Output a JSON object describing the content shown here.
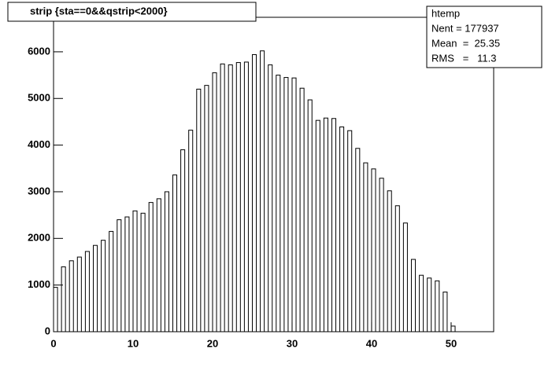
{
  "chart_data": {
    "type": "histogram",
    "title": "strip {sta==0&&qstrip<2000}",
    "stats_title": "htemp",
    "stats": [
      "Nent = 177937",
      "Mean  =  25.35",
      "RMS   =   11.3"
    ],
    "bins": [
      0,
      0.5,
      1,
      1.5,
      2,
      2.5,
      3,
      3.5,
      4,
      4.5,
      5,
      5.5,
      6,
      6.5,
      7,
      7.5,
      8,
      8.5,
      9,
      9.5,
      10,
      10.5,
      11,
      11.5,
      12,
      12.5,
      13,
      13.5,
      14,
      14.5,
      15,
      15.5,
      16,
      16.5,
      17,
      17.5,
      18,
      18.5,
      19,
      19.5,
      20,
      20.5,
      21,
      21.5,
      22,
      22.5,
      23,
      23.5,
      24,
      24.5,
      25,
      25.5,
      26,
      26.5,
      27,
      27.5,
      28,
      28.5,
      29,
      29.5,
      30,
      30.5,
      31,
      31.5,
      32,
      32.5,
      33,
      33.5,
      34,
      34.5,
      35,
      35.5,
      36,
      36.5,
      37,
      37.5,
      38,
      38.5,
      39,
      39.5,
      40,
      40.5,
      41,
      41.5,
      42,
      42.5,
      43,
      43.5,
      44,
      44.5,
      45,
      45.5,
      46,
      46.5,
      47,
      47.5,
      48,
      48.5,
      49,
      49.5,
      50,
      50.5,
      51
    ],
    "counts": [
      950,
      0,
      1390,
      0,
      1520,
      0,
      1600,
      0,
      1720,
      0,
      1850,
      0,
      1960,
      0,
      2150,
      0,
      2400,
      0,
      2460,
      0,
      2590,
      0,
      2540,
      0,
      2770,
      0,
      2850,
      0,
      3000,
      0,
      3360,
      0,
      3900,
      0,
      4320,
      0,
      5200,
      0,
      5280,
      0,
      5550,
      0,
      5740,
      0,
      5720,
      0,
      5770,
      0,
      5780,
      0,
      5940,
      0,
      6020,
      0,
      5720,
      0,
      5500,
      0,
      5450,
      0,
      5440,
      0,
      5220,
      0,
      4970,
      0,
      4530,
      0,
      4580,
      0,
      4570,
      0,
      4390,
      0,
      4310,
      0,
      3930,
      0,
      3620,
      0,
      3490,
      0,
      3290,
      0,
      3020,
      0,
      2700,
      0,
      2330,
      0,
      1550,
      0,
      1210,
      0,
      1150,
      0,
      1090,
      0,
      850,
      0,
      120,
      0
    ],
    "color": "#000000",
    "xlim": [
      0,
      55.35
    ],
    "xticks": [
      0,
      10,
      20,
      30,
      40,
      50
    ],
    "ylim": [
      0,
      6740
    ],
    "yticks": [
      0,
      1000,
      2000,
      3000,
      4000,
      5000,
      6000
    ]
  }
}
